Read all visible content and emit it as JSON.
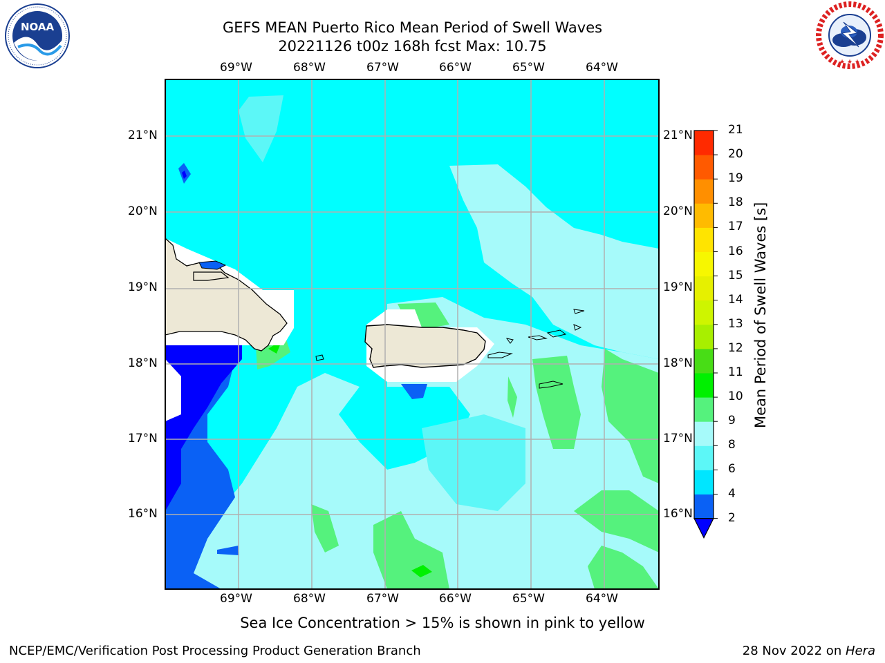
{
  "header": {
    "title_line1": "GEFS MEAN Puerto Rico Mean Period of Swell Waves",
    "title_line2": "20221126 t00z 168h fcst   Max: 10.75"
  },
  "logos": {
    "left": {
      "name": "noaa-logo",
      "text": "NOAA",
      "ring_text": "NATIONAL OCEANIC AND ATMOSPHERIC ADMINISTRATION · U.S. DEPARTMENT OF COMMERCE"
    },
    "right": {
      "name": "nws-logo",
      "ring_text": "NATIONAL WEATHER SERVICE"
    }
  },
  "map": {
    "lon_labels": [
      "69°W",
      "68°W",
      "67°W",
      "66°W",
      "65°W",
      "64°W"
    ],
    "lat_labels": [
      "21°N",
      "20°N",
      "19°N",
      "18°N",
      "17°N",
      "16°N"
    ],
    "lon_range": [
      -70.0,
      -63.25
    ],
    "lat_range": [
      15.0,
      21.75
    ],
    "gridlines": true,
    "colors": {
      "ocean_default": "#00ffff",
      "land": "#ede8d6",
      "no_data": "#ffffff"
    }
  },
  "colorbar": {
    "label": "Mean Period of Swell Waves [s]",
    "levels": [
      "2",
      "4",
      "6",
      "8",
      "9",
      "10",
      "11",
      "12",
      "13",
      "14",
      "15",
      "16",
      "17",
      "18",
      "19",
      "20",
      "21"
    ],
    "colors": [
      "#0a61f5",
      "#00e6ff",
      "#5cf7f7",
      "#a6fafa",
      "#55f27d",
      "#00f000",
      "#48dd16",
      "#a8ef00",
      "#cef500",
      "#e6f000",
      "#f7f700",
      "#ffe400",
      "#ffbb00",
      "#ff8f00",
      "#ff5a00",
      "#ff2a00"
    ],
    "under_color": "#0000ff"
  },
  "notes": {
    "sea_ice": "Sea Ice Concentration > 15% is shown in pink to yellow"
  },
  "footer": {
    "left": "NCEP/EMC/Verification Post Processing Product Generation Branch",
    "right_prefix": "28 Nov 2022 on ",
    "right_host": "Hera"
  }
}
